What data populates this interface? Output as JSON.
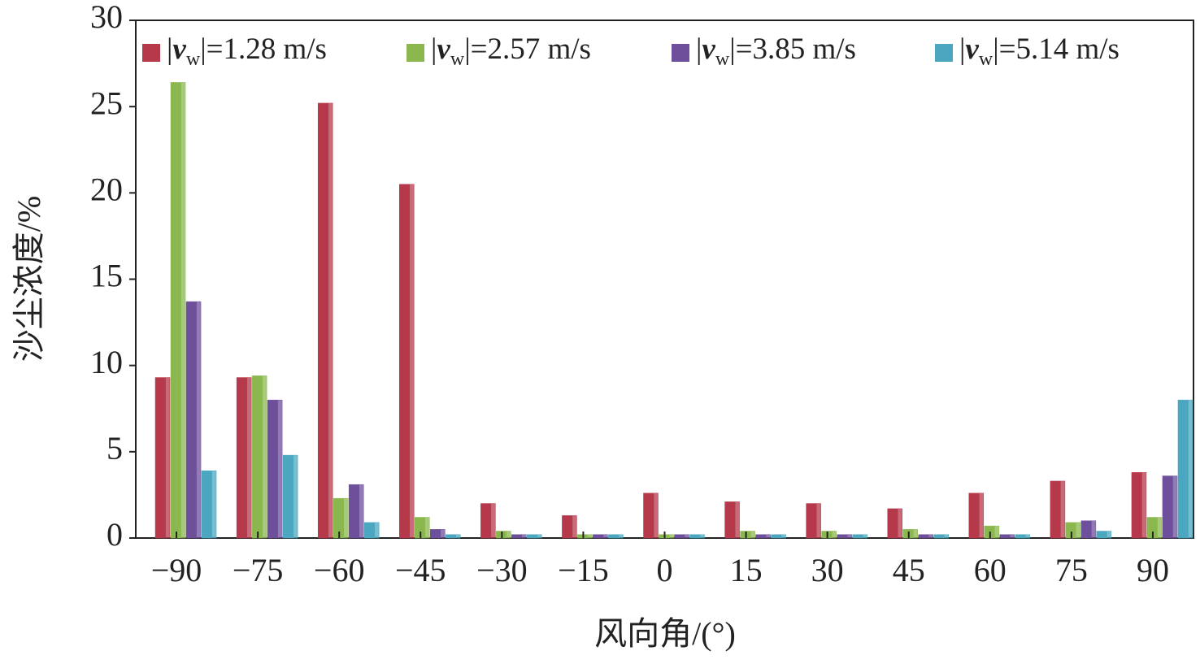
{
  "chart_data": {
    "type": "bar",
    "x_label": "风向角/(°)",
    "y_label": "沙尘浓度/%",
    "categories": [
      "−90",
      "−75",
      "−60",
      "−45",
      "−30",
      "−15",
      "0",
      "15",
      "30",
      "45",
      "60",
      "75",
      "90"
    ],
    "series": [
      {
        "name": "|vw|=1.28 m/s",
        "color": "#b5394a",
        "values": [
          9.3,
          9.3,
          25.2,
          20.5,
          2.0,
          1.3,
          2.6,
          2.1,
          2.0,
          1.7,
          2.6,
          3.3,
          3.8
        ]
      },
      {
        "name": "|vw|=2.57 m/s",
        "color": "#8ab74e",
        "values": [
          26.4,
          9.4,
          2.3,
          1.2,
          0.4,
          0.2,
          0.2,
          0.4,
          0.4,
          0.5,
          0.7,
          0.9,
          1.2
        ]
      },
      {
        "name": "|vw|=3.85 m/s",
        "color": "#6e4f9b",
        "values": [
          13.7,
          8.0,
          3.1,
          0.5,
          0.2,
          0.2,
          0.2,
          0.2,
          0.2,
          0.2,
          0.2,
          1.0,
          3.6
        ]
      },
      {
        "name": "|vw|=5.14 m/s",
        "color": "#4aa7bf",
        "values": [
          3.9,
          4.8,
          0.9,
          0.2,
          0.2,
          0.2,
          0.2,
          0.2,
          0.2,
          0.2,
          0.2,
          0.4,
          8.0
        ]
      }
    ],
    "ylim": [
      0,
      30
    ],
    "yticks": [
      0,
      5,
      10,
      15,
      20,
      25,
      30
    ],
    "legend": "top"
  }
}
